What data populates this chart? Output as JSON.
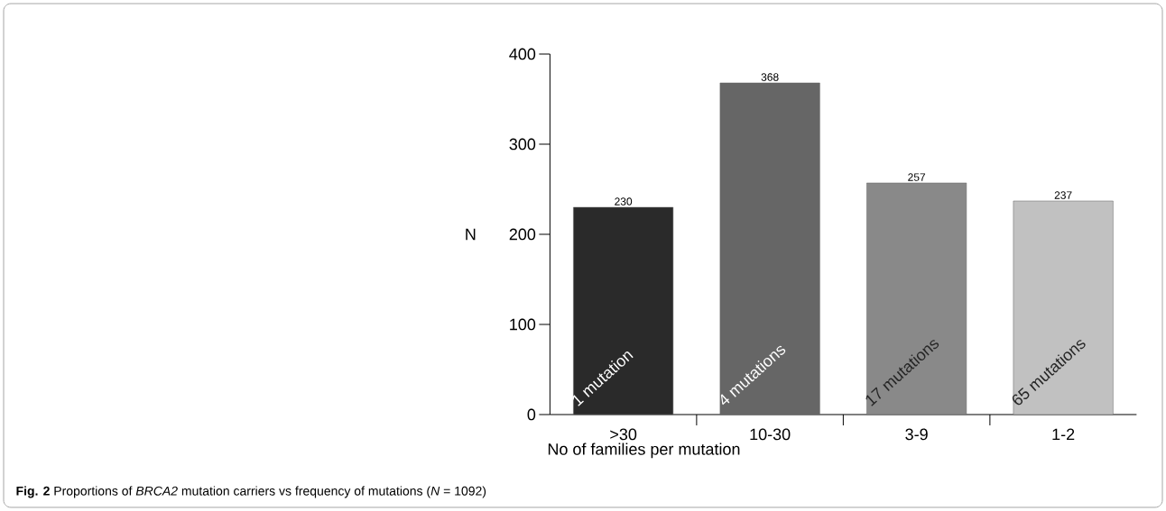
{
  "chart_data": {
    "type": "bar",
    "categories": [
      ">30",
      "10-30",
      "3-9",
      "1-2"
    ],
    "values": [
      230,
      368,
      257,
      237
    ],
    "colors": [
      "#2a2a2a",
      "#666666",
      "#898989",
      "#c1c1c1"
    ],
    "ylim": [
      0,
      400
    ],
    "yticks": [
      0,
      100,
      200,
      300,
      400
    ],
    "xlabel": "No of families per mutation",
    "ylabel": "N",
    "data_labels": true,
    "grid": false,
    "annotations": [
      "1 mutation",
      "4 mutations",
      "17 mutations",
      "65 mutations",
      "**Fig. 2** Proportions of *BRCA2* mutation carriers vs frequency of mutations (*N* = 1092)"
    ]
  }
}
